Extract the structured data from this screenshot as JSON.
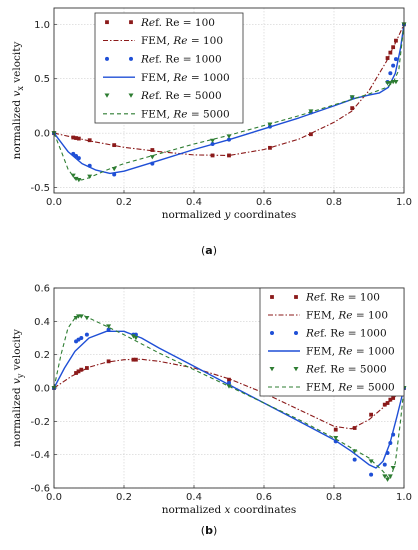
{
  "chart_data": [
    {
      "type": "line",
      "caption": "(a)",
      "xlabel": "normalized y coordinates",
      "ylabel": "normalized v_x velocity",
      "xlim": [
        0,
        1
      ],
      "ylim": [
        -0.55,
        1.15
      ],
      "xticks": [
        "0.0",
        "0.2",
        "0.4",
        "0.6",
        "0.8",
        "1.0"
      ],
      "yticks": [
        "1.0",
        "0.5",
        "0.0",
        "-0.5"
      ],
      "grid": true,
      "legend_position": "top-left",
      "legend": [
        "Ref. Re = 100",
        "FEM, Re = 100",
        "Ref. Re = 1000",
        "FEM, Re = 1000",
        "Ref. Re = 5000",
        "FEM, Re = 5000"
      ],
      "colors": {
        "re100": "#8b1a1a",
        "re1000": "#1f4fd6",
        "re5000": "#2e7d32"
      },
      "series": [
        {
          "name": "Ref. Re = 100",
          "style": "square-markers",
          "color": "#8b1a1a",
          "points": [
            [
              0,
              0
            ],
            [
              0.055,
              -0.04
            ],
            [
              0.063,
              -0.045
            ],
            [
              0.071,
              -0.05
            ],
            [
              0.102,
              -0.065
            ],
            [
              0.172,
              -0.11
            ],
            [
              0.281,
              -0.155
            ],
            [
              0.453,
              -0.205
            ],
            [
              0.5,
              -0.205
            ],
            [
              0.617,
              -0.135
            ],
            [
              0.734,
              -0.01
            ],
            [
              0.852,
              0.23
            ],
            [
              0.953,
              0.69
            ],
            [
              0.961,
              0.74
            ],
            [
              0.969,
              0.79
            ],
            [
              0.977,
              0.85
            ],
            [
              1.0,
              1.0
            ]
          ]
        },
        {
          "name": "FEM, Re = 100",
          "style": "dash-dot-line",
          "color": "#8b1a1a",
          "points": [
            [
              0,
              0
            ],
            [
              0.05,
              -0.035
            ],
            [
              0.1,
              -0.07
            ],
            [
              0.2,
              -0.13
            ],
            [
              0.3,
              -0.17
            ],
            [
              0.4,
              -0.2
            ],
            [
              0.5,
              -0.205
            ],
            [
              0.6,
              -0.15
            ],
            [
              0.7,
              -0.055
            ],
            [
              0.8,
              0.1
            ],
            [
              0.85,
              0.2
            ],
            [
              0.9,
              0.39
            ],
            [
              0.95,
              0.66
            ],
            [
              0.98,
              0.86
            ],
            [
              1.0,
              1.0
            ]
          ]
        },
        {
          "name": "Ref. Re = 1000",
          "style": "circle-markers",
          "color": "#1f4fd6",
          "points": [
            [
              0,
              0
            ],
            [
              0.055,
              -0.19
            ],
            [
              0.063,
              -0.21
            ],
            [
              0.071,
              -0.23
            ],
            [
              0.102,
              -0.3
            ],
            [
              0.172,
              -0.38
            ],
            [
              0.281,
              -0.28
            ],
            [
              0.453,
              -0.1
            ],
            [
              0.5,
              -0.06
            ],
            [
              0.617,
              0.06
            ],
            [
              0.734,
              0.19
            ],
            [
              0.852,
              0.33
            ],
            [
              0.953,
              0.47
            ],
            [
              0.961,
              0.55
            ],
            [
              0.969,
              0.62
            ],
            [
              0.977,
              0.68
            ],
            [
              1.0,
              1.0
            ]
          ]
        },
        {
          "name": "FEM, Re = 1000",
          "style": "solid-line",
          "color": "#1f4fd6",
          "points": [
            [
              0,
              0
            ],
            [
              0.04,
              -0.17
            ],
            [
              0.08,
              -0.28
            ],
            [
              0.12,
              -0.34
            ],
            [
              0.16,
              -0.37
            ],
            [
              0.2,
              -0.35
            ],
            [
              0.25,
              -0.3
            ],
            [
              0.3,
              -0.25
            ],
            [
              0.4,
              -0.15
            ],
            [
              0.5,
              -0.06
            ],
            [
              0.6,
              0.04
            ],
            [
              0.7,
              0.14
            ],
            [
              0.8,
              0.25
            ],
            [
              0.86,
              0.32
            ],
            [
              0.9,
              0.35
            ],
            [
              0.93,
              0.37
            ],
            [
              0.955,
              0.42
            ],
            [
              0.975,
              0.55
            ],
            [
              0.99,
              0.78
            ],
            [
              1.0,
              1.0
            ]
          ]
        },
        {
          "name": "Ref. Re = 5000",
          "style": "triangle-markers",
          "color": "#2e7d32",
          "points": [
            [
              0,
              0
            ],
            [
              0.055,
              -0.39
            ],
            [
              0.063,
              -0.42
            ],
            [
              0.071,
              -0.43
            ],
            [
              0.102,
              -0.4
            ],
            [
              0.172,
              -0.33
            ],
            [
              0.281,
              -0.22
            ],
            [
              0.453,
              -0.07
            ],
            [
              0.5,
              -0.03
            ],
            [
              0.617,
              0.08
            ],
            [
              0.734,
              0.2
            ],
            [
              0.852,
              0.33
            ],
            [
              0.953,
              0.46
            ],
            [
              0.961,
              0.46
            ],
            [
              0.969,
              0.47
            ],
            [
              0.977,
              0.47
            ],
            [
              1.0,
              1.0
            ]
          ]
        },
        {
          "name": "FEM, Re = 5000",
          "style": "dashed-line",
          "color": "#2e7d32",
          "points": [
            [
              0,
              0
            ],
            [
              0.02,
              -0.16
            ],
            [
              0.04,
              -0.33
            ],
            [
              0.06,
              -0.42
            ],
            [
              0.08,
              -0.43
            ],
            [
              0.1,
              -0.41
            ],
            [
              0.15,
              -0.34
            ],
            [
              0.2,
              -0.28
            ],
            [
              0.3,
              -0.19
            ],
            [
              0.4,
              -0.1
            ],
            [
              0.5,
              -0.02
            ],
            [
              0.6,
              0.07
            ],
            [
              0.7,
              0.16
            ],
            [
              0.8,
              0.26
            ],
            [
              0.9,
              0.36
            ],
            [
              0.95,
              0.42
            ],
            [
              0.97,
              0.47
            ],
            [
              0.985,
              0.58
            ],
            [
              1.0,
              1.0
            ]
          ]
        }
      ]
    },
    {
      "type": "line",
      "caption": "(b)",
      "xlabel": "normalized x coordinates",
      "ylabel": "normalized v_y velocity",
      "xlim": [
        0,
        1
      ],
      "ylim": [
        -0.6,
        0.6
      ],
      "xticks": [
        "0.0",
        "0.2",
        "0.4",
        "0.6",
        "0.8",
        "1.0"
      ],
      "yticks": [
        "0.6",
        "0.4",
        "0.2",
        "0.0",
        "-0.2",
        "-0.4",
        "-0.6"
      ],
      "grid": true,
      "legend_position": "top-right",
      "legend": [
        "Ref. Re = 100",
        "FEM, Re = 100",
        "Ref. Re = 1000",
        "FEM, Re = 1000",
        "Ref. Re = 5000",
        "FEM, Re = 5000"
      ],
      "colors": {
        "re100": "#8b1a1a",
        "re1000": "#1f4fd6",
        "re5000": "#2e7d32"
      },
      "series": [
        {
          "name": "Ref. Re = 100",
          "style": "square-markers",
          "color": "#8b1a1a",
          "points": [
            [
              0,
              0
            ],
            [
              0.063,
              0.09
            ],
            [
              0.07,
              0.1
            ],
            [
              0.078,
              0.11
            ],
            [
              0.094,
              0.12
            ],
            [
              0.156,
              0.16
            ],
            [
              0.227,
              0.17
            ],
            [
              0.234,
              0.17
            ],
            [
              0.5,
              0.05
            ],
            [
              0.805,
              -0.25
            ],
            [
              0.859,
              -0.24
            ],
            [
              0.906,
              -0.16
            ],
            [
              0.945,
              -0.1
            ],
            [
              0.953,
              -0.09
            ],
            [
              0.961,
              -0.07
            ],
            [
              0.969,
              -0.06
            ],
            [
              1.0,
              0
            ]
          ]
        },
        {
          "name": "FEM, Re = 100",
          "style": "dash-dot-line",
          "color": "#8b1a1a",
          "points": [
            [
              0,
              0
            ],
            [
              0.05,
              0.07
            ],
            [
              0.1,
              0.125
            ],
            [
              0.15,
              0.155
            ],
            [
              0.2,
              0.17
            ],
            [
              0.25,
              0.172
            ],
            [
              0.3,
              0.16
            ],
            [
              0.4,
              0.12
            ],
            [
              0.5,
              0.055
            ],
            [
              0.6,
              -0.03
            ],
            [
              0.7,
              -0.13
            ],
            [
              0.8,
              -0.23
            ],
            [
              0.85,
              -0.245
            ],
            [
              0.9,
              -0.19
            ],
            [
              0.95,
              -0.1
            ],
            [
              1.0,
              0
            ]
          ]
        },
        {
          "name": "Ref. Re = 1000",
          "style": "circle-markers",
          "color": "#1f4fd6",
          "points": [
            [
              0,
              0
            ],
            [
              0.063,
              0.28
            ],
            [
              0.07,
              0.29
            ],
            [
              0.078,
              0.3
            ],
            [
              0.094,
              0.32
            ],
            [
              0.156,
              0.35
            ],
            [
              0.227,
              0.32
            ],
            [
              0.234,
              0.32
            ],
            [
              0.5,
              0.03
            ],
            [
              0.805,
              -0.32
            ],
            [
              0.859,
              -0.43
            ],
            [
              0.906,
              -0.52
            ],
            [
              0.945,
              -0.46
            ],
            [
              0.953,
              -0.39
            ],
            [
              0.961,
              -0.33
            ],
            [
              0.969,
              -0.28
            ],
            [
              1.0,
              0
            ]
          ]
        },
        {
          "name": "FEM, Re = 1000",
          "style": "solid-line",
          "color": "#1f4fd6",
          "points": [
            [
              0,
              0
            ],
            [
              0.03,
              0.12
            ],
            [
              0.06,
              0.22
            ],
            [
              0.1,
              0.3
            ],
            [
              0.15,
              0.34
            ],
            [
              0.2,
              0.34
            ],
            [
              0.25,
              0.3
            ],
            [
              0.3,
              0.24
            ],
            [
              0.4,
              0.13
            ],
            [
              0.5,
              0.02
            ],
            [
              0.6,
              -0.09
            ],
            [
              0.7,
              -0.2
            ],
            [
              0.8,
              -0.31
            ],
            [
              0.85,
              -0.38
            ],
            [
              0.9,
              -0.46
            ],
            [
              0.92,
              -0.48
            ],
            [
              0.94,
              -0.44
            ],
            [
              0.96,
              -0.33
            ],
            [
              0.98,
              -0.17
            ],
            [
              1.0,
              0
            ]
          ]
        },
        {
          "name": "Ref. Re = 5000",
          "style": "triangle-markers",
          "color": "#2e7d32",
          "points": [
            [
              0,
              0
            ],
            [
              0.063,
              0.42
            ],
            [
              0.07,
              0.43
            ],
            [
              0.078,
              0.43
            ],
            [
              0.094,
              0.42
            ],
            [
              0.156,
              0.37
            ],
            [
              0.227,
              0.31
            ],
            [
              0.234,
              0.3
            ],
            [
              0.5,
              0.01
            ],
            [
              0.805,
              -0.3
            ],
            [
              0.859,
              -0.38
            ],
            [
              0.906,
              -0.44
            ],
            [
              0.945,
              -0.53
            ],
            [
              0.953,
              -0.55
            ],
            [
              0.961,
              -0.53
            ],
            [
              0.969,
              -0.48
            ],
            [
              1.0,
              0
            ]
          ]
        },
        {
          "name": "FEM, Re = 5000",
          "style": "dashed-line",
          "color": "#2e7d32",
          "points": [
            [
              0,
              0
            ],
            [
              0.02,
              0.2
            ],
            [
              0.04,
              0.36
            ],
            [
              0.06,
              0.42
            ],
            [
              0.08,
              0.44
            ],
            [
              0.1,
              0.42
            ],
            [
              0.15,
              0.37
            ],
            [
              0.2,
              0.32
            ],
            [
              0.3,
              0.21
            ],
            [
              0.4,
              0.11
            ],
            [
              0.5,
              0.01
            ],
            [
              0.6,
              -0.09
            ],
            [
              0.7,
              -0.19
            ],
            [
              0.8,
              -0.3
            ],
            [
              0.9,
              -0.42
            ],
            [
              0.94,
              -0.5
            ],
            [
              0.96,
              -0.55
            ],
            [
              0.975,
              -0.45
            ],
            [
              0.99,
              -0.2
            ],
            [
              1.0,
              0
            ]
          ]
        }
      ]
    }
  ]
}
